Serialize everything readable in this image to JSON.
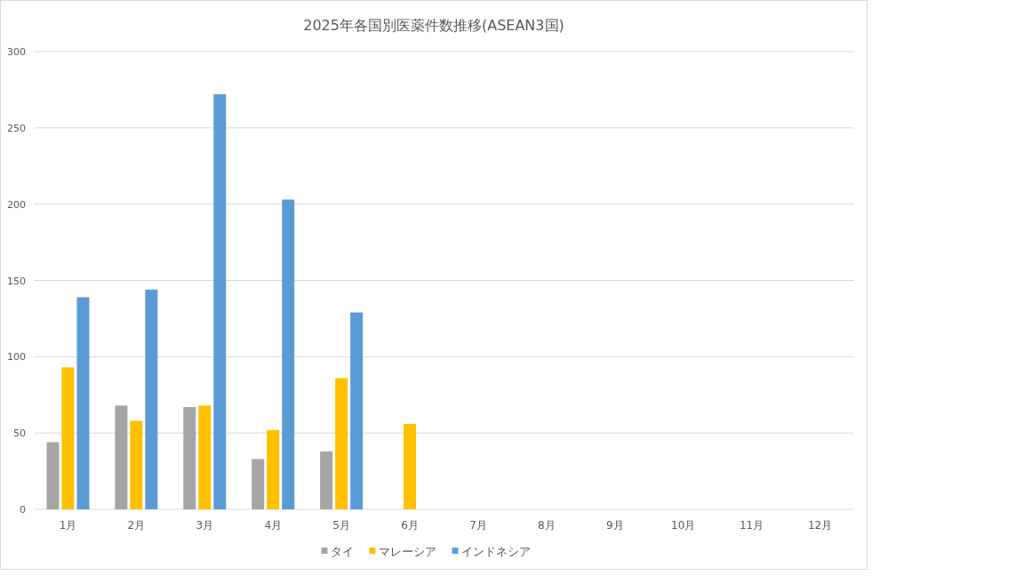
{
  "chart_data": {
    "type": "bar",
    "title": "2025年各国別医薬件数推移(ASEAN3国)",
    "categories": [
      "1月",
      "2月",
      "3月",
      "4月",
      "5月",
      "6月",
      "7月",
      "8月",
      "9月",
      "10月",
      "11月",
      "12月"
    ],
    "series": [
      {
        "name": "タイ",
        "color": "#a5a5a5",
        "values": [
          44,
          68,
          67,
          33,
          38,
          null,
          null,
          null,
          null,
          null,
          null,
          null
        ]
      },
      {
        "name": "マレーシア",
        "color": "#ffc000",
        "values": [
          93,
          58,
          68,
          52,
          86,
          56,
          null,
          null,
          null,
          null,
          null,
          null
        ]
      },
      {
        "name": "インドネシア",
        "color": "#5b9bd5",
        "values": [
          139,
          144,
          272,
          203,
          129,
          null,
          null,
          null,
          null,
          null,
          null,
          null
        ]
      }
    ],
    "ylim": [
      0,
      300
    ],
    "yticks": [
      0,
      50,
      100,
      150,
      200,
      250,
      300
    ],
    "grid": "y",
    "legend": "bottom"
  }
}
